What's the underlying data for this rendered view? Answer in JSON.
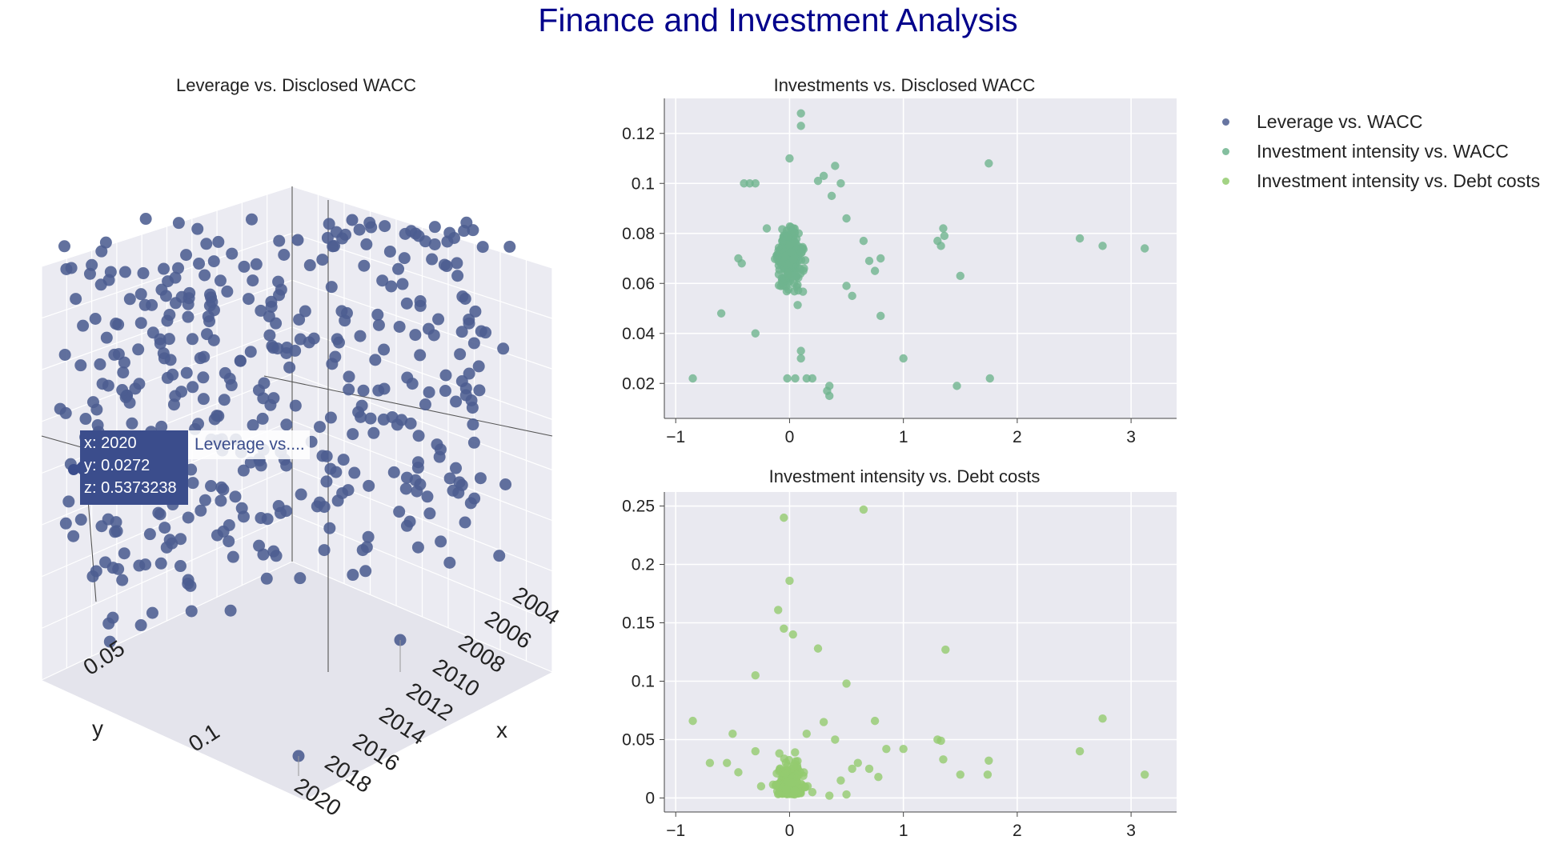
{
  "title": "Finance and Investment Analysis",
  "legend": [
    {
      "name": "Leverage vs. WACC",
      "color": "#4c5d91"
    },
    {
      "name": "Investment intensity vs. WACC",
      "color": "#6fb48e"
    },
    {
      "name": "Investment intensity vs. Debt costs",
      "color": "#93cb6f"
    }
  ],
  "tooltip": {
    "x_line": "x: 2020",
    "y_line": "y: 0.0272",
    "z_line": "z: 0.5373238",
    "series_name": "Leverage vs...."
  },
  "chart_data": [
    {
      "type": "scatter3d",
      "title": "Leverage vs. Disclosed WACC",
      "xlabel": "x",
      "ylabel": "y",
      "x_ticks": [
        "2004",
        "2006",
        "2008",
        "2010",
        "2012",
        "2014",
        "2016",
        "2018",
        "2020"
      ],
      "y_ticks": [
        "0.05",
        "0.1"
      ],
      "series": [
        {
          "name": "Leverage vs. WACC",
          "color": "#4c5d91",
          "point_count": 420
        }
      ],
      "highlighted_point": {
        "x": 2020,
        "y": 0.0272,
        "z": 0.5373238
      }
    },
    {
      "type": "scatter",
      "title": "Investments vs. Disclosed WACC",
      "xlim": [
        -1.1,
        3.4
      ],
      "ylim": [
        0.006,
        0.134
      ],
      "x_ticks": [
        "−1",
        "0",
        "1",
        "2",
        "3"
      ],
      "y_ticks": [
        "0.02",
        "0.04",
        "0.06",
        "0.08",
        "0.1",
        "0.12"
      ],
      "series": [
        {
          "name": "Investment intensity vs. WACC",
          "color": "#6fb48e",
          "points": [
            [
              0.1,
              0.128
            ],
            [
              0.1,
              0.123
            ],
            [
              0.0,
              0.11
            ],
            [
              -0.35,
              0.1
            ],
            [
              -0.3,
              0.1
            ],
            [
              -0.4,
              0.1
            ],
            [
              0.3,
              0.103
            ],
            [
              0.4,
              0.107
            ],
            [
              0.25,
              0.101
            ],
            [
              0.45,
              0.1
            ],
            [
              0.37,
              0.095
            ],
            [
              0.5,
              0.086
            ],
            [
              0.65,
              0.077
            ],
            [
              0.8,
              0.07
            ],
            [
              0.7,
              0.069
            ],
            [
              0.75,
              0.065
            ],
            [
              0.5,
              0.059
            ],
            [
              0.55,
              0.055
            ],
            [
              0.8,
              0.047
            ],
            [
              1.3,
              0.077
            ],
            [
              1.33,
              0.075
            ],
            [
              1.35,
              0.082
            ],
            [
              1.36,
              0.079
            ],
            [
              1.5,
              0.063
            ],
            [
              1.75,
              0.108
            ],
            [
              2.55,
              0.078
            ],
            [
              2.75,
              0.075
            ],
            [
              3.12,
              0.074
            ],
            [
              -0.85,
              0.022
            ],
            [
              -0.6,
              0.048
            ],
            [
              1.0,
              0.03
            ],
            [
              1.47,
              0.019
            ],
            [
              1.76,
              0.022
            ],
            [
              0.35,
              0.019
            ],
            [
              0.35,
              0.015
            ],
            [
              0.33,
              0.017
            ],
            [
              0.2,
              0.022
            ],
            [
              0.15,
              0.022
            ],
            [
              -0.02,
              0.022
            ],
            [
              0.05,
              0.022
            ],
            [
              0.1,
              0.03
            ],
            [
              0.1,
              0.033
            ],
            [
              -0.3,
              0.04
            ],
            [
              -0.45,
              0.07
            ],
            [
              -0.42,
              0.068
            ],
            [
              -0.2,
              0.082
            ],
            [
              0.05,
              0.066
            ],
            [
              0.02,
              0.072
            ],
            [
              0.0,
              0.075
            ],
            [
              -0.05,
              0.078
            ],
            [
              0.08,
              0.08
            ]
          ]
        }
      ]
    },
    {
      "type": "scatter",
      "title": "Investment intensity vs. Debt costs",
      "xlim": [
        -1.1,
        3.4
      ],
      "ylim": [
        -0.012,
        0.262
      ],
      "x_ticks": [
        "−1",
        "0",
        "1",
        "2",
        "3"
      ],
      "y_ticks": [
        "0",
        "0.05",
        "0.1",
        "0.15",
        "0.2",
        "0.25"
      ],
      "series": [
        {
          "name": "Investment intensity vs. Debt costs",
          "color": "#93cb6f",
          "points": [
            [
              -0.05,
              0.24
            ],
            [
              0.65,
              0.247
            ],
            [
              0.0,
              0.186
            ],
            [
              -0.1,
              0.161
            ],
            [
              -0.05,
              0.145
            ],
            [
              0.03,
              0.14
            ],
            [
              0.25,
              0.128
            ],
            [
              1.37,
              0.127
            ],
            [
              -0.3,
              0.105
            ],
            [
              0.5,
              0.098
            ],
            [
              -0.85,
              0.066
            ],
            [
              -0.5,
              0.055
            ],
            [
              -0.55,
              0.03
            ],
            [
              -0.45,
              0.022
            ],
            [
              -0.7,
              0.03
            ],
            [
              0.75,
              0.066
            ],
            [
              0.85,
              0.042
            ],
            [
              1.0,
              0.042
            ],
            [
              0.7,
              0.025
            ],
            [
              0.78,
              0.018
            ],
            [
              1.3,
              0.05
            ],
            [
              1.33,
              0.049
            ],
            [
              1.35,
              0.033
            ],
            [
              1.5,
              0.02
            ],
            [
              1.75,
              0.032
            ],
            [
              1.74,
              0.02
            ],
            [
              2.55,
              0.04
            ],
            [
              2.75,
              0.068
            ],
            [
              3.12,
              0.02
            ],
            [
              0.35,
              0.002
            ],
            [
              0.5,
              0.003
            ],
            [
              0.45,
              0.015
            ],
            [
              0.6,
              0.03
            ],
            [
              0.55,
              0.025
            ],
            [
              -0.25,
              0.01
            ],
            [
              -0.3,
              0.04
            ],
            [
              0.2,
              0.005
            ],
            [
              0.15,
              0.055
            ],
            [
              0.3,
              0.065
            ],
            [
              0.4,
              0.05
            ]
          ]
        }
      ]
    }
  ]
}
